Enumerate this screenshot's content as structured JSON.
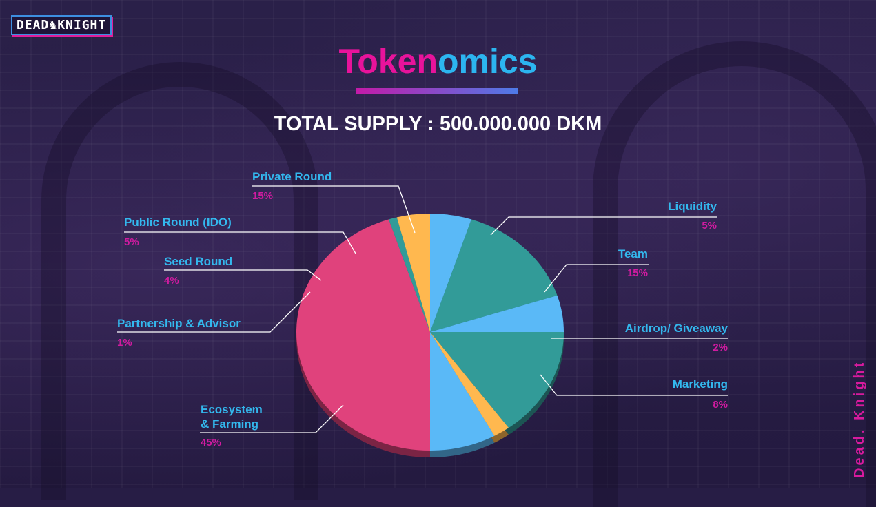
{
  "brand": {
    "logo_text_left": "DEAD",
    "logo_text_right": "KNIGHT",
    "side_text": "Dead. Knight"
  },
  "title": {
    "part1": "Toke",
    "part2": "n",
    "part3": "omics"
  },
  "subtitle": "TOTAL SUPPLY : 500.000.000 DKM",
  "colors": {
    "title_pink": "#e8139b",
    "title_blue": "#2cb5f0",
    "label_blue": "#33b8ee",
    "percent_pink": "#d01ba0"
  },
  "chart_data": {
    "type": "pie",
    "unit": "%",
    "slices": [
      {
        "name": "Team",
        "value": 15,
        "label": "15%",
        "color": "#329b98"
      },
      {
        "name": "Airdrop/ Giveaway",
        "value": 2,
        "label": "2%",
        "color": "#ffb84f"
      },
      {
        "name": "Marketing",
        "value": 8,
        "label": "8%",
        "color": "#5ab9f7"
      },
      {
        "name": "Ecosystem\n& Farming",
        "value": 45,
        "label": "45%",
        "color": "#e0427c"
      },
      {
        "name": "Partnership &  Advisor",
        "value": 1,
        "label": "1%",
        "color": "#329b98"
      },
      {
        "name": "Seed Round",
        "value": 4,
        "label": "4%",
        "color": "#ffb84f"
      },
      {
        "name": "Public Round (IDO)",
        "value": 5,
        "label": "5%",
        "color": "#5ab9f7"
      },
      {
        "name": "Private Round",
        "value": 15,
        "label": "15%",
        "color": "#329b98"
      },
      {
        "name": "Liquidity",
        "value": 5,
        "label": "5%",
        "color": "#5ab9f7"
      }
    ]
  }
}
